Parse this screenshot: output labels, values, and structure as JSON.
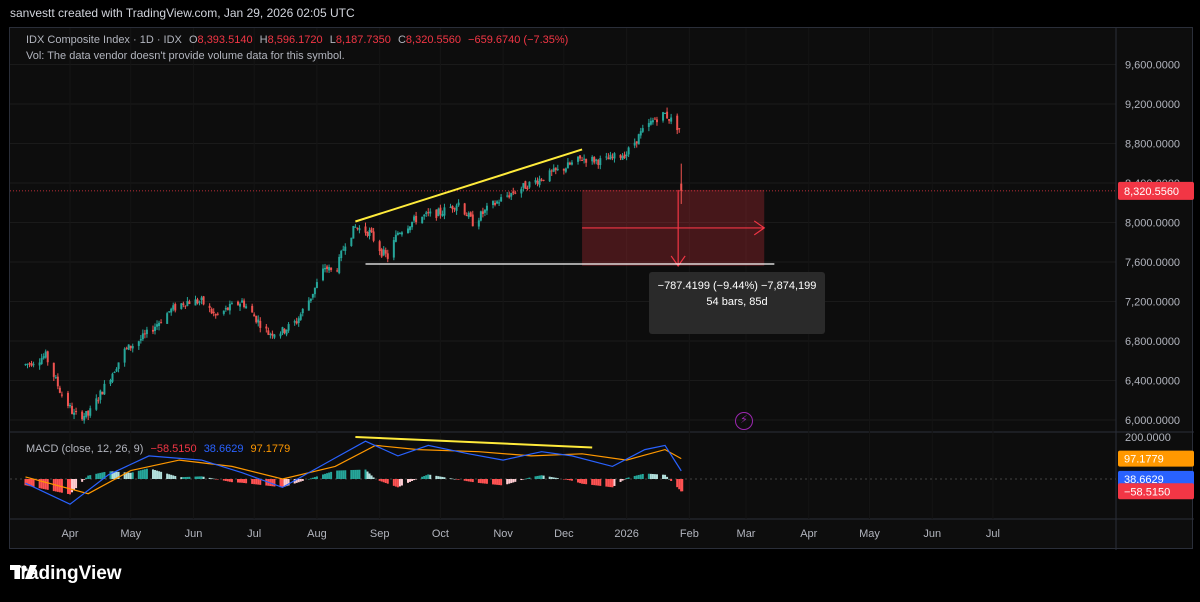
{
  "caption": "sanvestt created with TradingView.com, Jan 29, 2026 02:05 UTC",
  "legend": {
    "symbol": "IDX Composite Index · 1D · IDX",
    "o_label": "O",
    "o_value": "8,393.5140",
    "h_label": "H",
    "h_value": "8,596.1720",
    "l_label": "L",
    "l_value": "8,187.7350",
    "c_label": "C",
    "c_value": "8,320.5560",
    "change": "−659.6740 (−7.35%)",
    "vol_note": "Vol: The data vendor doesn't provide volume data for this symbol."
  },
  "macd_legend": {
    "label": "MACD (close, 12, 26, 9)",
    "hist": "−58.5150",
    "macd": "38.6629",
    "signal": "97.1779"
  },
  "measure_box": {
    "line1": "−787.4199 (−9.44%) −7,874,199",
    "line2": "54 bars, 85d"
  },
  "brand": "TradingView",
  "colors": {
    "up": "#26a69a",
    "down": "#ef5350",
    "trend": "#ffeb3b",
    "macd": "#2962ff",
    "signal": "#ff9800",
    "last": "#f23645"
  },
  "chart_data": {
    "type": "candlestick",
    "price_axis": {
      "ticks": [
        "9,600.0000",
        "9,200.0000",
        "8,800.0000",
        "8,400.0000",
        "8,000.0000",
        "7,600.0000",
        "7,200.0000",
        "6,800.0000",
        "6,400.0000",
        "6,000.0000"
      ],
      "values": [
        9600,
        9200,
        8800,
        8400,
        8000,
        7600,
        7200,
        6800,
        6400,
        6000
      ],
      "last_price_label": "8,320.5560",
      "last_price": 8320.556
    },
    "macd_axis": {
      "ticks": [
        "200.0000",
        "0.0000"
      ],
      "values": [
        200,
        0
      ],
      "labels": [
        {
          "text": "97.1779",
          "value": 97.1779,
          "color": "#ff9800"
        },
        {
          "text": "38.6629",
          "value": 38.6629,
          "color": "#2962ff"
        },
        {
          "text": "−58.5150",
          "value": -58.515,
          "color": "#f23645"
        }
      ]
    },
    "time_axis": [
      "Apr",
      "May",
      "Jun",
      "Jul",
      "Aug",
      "Sep",
      "Oct",
      "Nov",
      "Dec",
      "2026",
      "Feb",
      "Mar",
      "Apr",
      "May",
      "Jun",
      "Jul"
    ],
    "time_axis_dates": [
      "2025-04-01",
      "2025-05-01",
      "2025-06-01",
      "2025-07-01",
      "2025-08-01",
      "2025-09-01",
      "2025-10-01",
      "2025-11-01",
      "2025-12-01",
      "2026-01-01",
      "2026-02-01",
      "2026-03-01",
      "2026-04-01",
      "2026-05-01",
      "2026-06-01",
      "2026-07-01"
    ],
    "close_path": [
      [
        "2025-03-10",
        6560
      ],
      [
        "2025-03-20",
        6650
      ],
      [
        "2025-03-27",
        6300
      ],
      [
        "2025-04-03",
        6050
      ],
      [
        "2025-04-10",
        6050
      ],
      [
        "2025-04-17",
        6300
      ],
      [
        "2025-04-28",
        6700
      ],
      [
        "2025-05-08",
        6850
      ],
      [
        "2025-05-20",
        7100
      ],
      [
        "2025-05-28",
        7200
      ],
      [
        "2025-06-05",
        7200
      ],
      [
        "2025-06-12",
        7050
      ],
      [
        "2025-06-20",
        7150
      ],
      [
        "2025-06-25",
        7200
      ],
      [
        "2025-07-01",
        7050
      ],
      [
        "2025-07-08",
        6880
      ],
      [
        "2025-07-15",
        6900
      ],
      [
        "2025-07-22",
        7000
      ],
      [
        "2025-07-29",
        7250
      ],
      [
        "2025-08-05",
        7550
      ],
      [
        "2025-08-10",
        7480
      ],
      [
        "2025-08-15",
        7800
      ],
      [
        "2025-08-20",
        7950
      ],
      [
        "2025-08-27",
        7900
      ],
      [
        "2025-09-02",
        7700
      ],
      [
        "2025-09-05",
        7650
      ],
      [
        "2025-09-10",
        7900
      ],
      [
        "2025-09-20",
        8050
      ],
      [
        "2025-10-01",
        8100
      ],
      [
        "2025-10-10",
        8200
      ],
      [
        "2025-10-17",
        8000
      ],
      [
        "2025-10-25",
        8150
      ],
      [
        "2025-11-01",
        8250
      ],
      [
        "2025-11-10",
        8350
      ],
      [
        "2025-11-20",
        8450
      ],
      [
        "2025-12-01",
        8550
      ],
      [
        "2025-12-10",
        8650
      ],
      [
        "2025-12-20",
        8620
      ],
      [
        "2026-01-01",
        8700
      ],
      [
        "2026-01-08",
        8900
      ],
      [
        "2026-01-15",
        9050
      ],
      [
        "2026-01-20",
        9100
      ],
      [
        "2026-01-27",
        8950
      ]
    ],
    "last_candle": {
      "date": "2026-01-28",
      "open": 8393.514,
      "high": 8596.172,
      "low": 8187.735,
      "close": 8320.556
    },
    "trend_up": [
      [
        "2025-08-20",
        8010
      ],
      [
        "2025-12-10",
        8740
      ]
    ],
    "support": [
      [
        "2025-08-25",
        7580
      ],
      [
        "2026-03-15",
        7580
      ]
    ],
    "measure": {
      "from_date": "2025-12-10",
      "to_date": "2026-03-10",
      "top": 8330,
      "bottom": 7560
    },
    "macd_trend": [
      [
        "2025-08-20",
        200
      ],
      [
        "2025-12-15",
        150
      ]
    ],
    "macd_line": [
      [
        "2025-03-10",
        -20
      ],
      [
        "2025-04-01",
        -120
      ],
      [
        "2025-04-20",
        20
      ],
      [
        "2025-05-10",
        110
      ],
      [
        "2025-06-05",
        90
      ],
      [
        "2025-06-25",
        30
      ],
      [
        "2025-07-15",
        -40
      ],
      [
        "2025-08-10",
        100
      ],
      [
        "2025-08-25",
        180
      ],
      [
        "2025-09-10",
        110
      ],
      [
        "2025-09-25",
        160
      ],
      [
        "2025-10-15",
        120
      ],
      [
        "2025-11-01",
        90
      ],
      [
        "2025-11-20",
        130
      ],
      [
        "2025-12-05",
        110
      ],
      [
        "2025-12-25",
        60
      ],
      [
        "2026-01-10",
        140
      ],
      [
        "2026-01-20",
        160
      ],
      [
        "2026-01-28",
        38.6629
      ]
    ],
    "signal_line": [
      [
        "2025-03-10",
        10
      ],
      [
        "2025-04-10",
        -70
      ],
      [
        "2025-05-01",
        40
      ],
      [
        "2025-05-25",
        90
      ],
      [
        "2025-06-20",
        60
      ],
      [
        "2025-07-15",
        0
      ],
      [
        "2025-08-10",
        60
      ],
      [
        "2025-08-30",
        160
      ],
      [
        "2025-09-20",
        140
      ],
      [
        "2025-10-20",
        130
      ],
      [
        "2025-11-15",
        110
      ],
      [
        "2025-12-10",
        120
      ],
      [
        "2026-01-01",
        90
      ],
      [
        "2026-01-20",
        140
      ],
      [
        "2026-01-28",
        97.1779
      ]
    ]
  }
}
